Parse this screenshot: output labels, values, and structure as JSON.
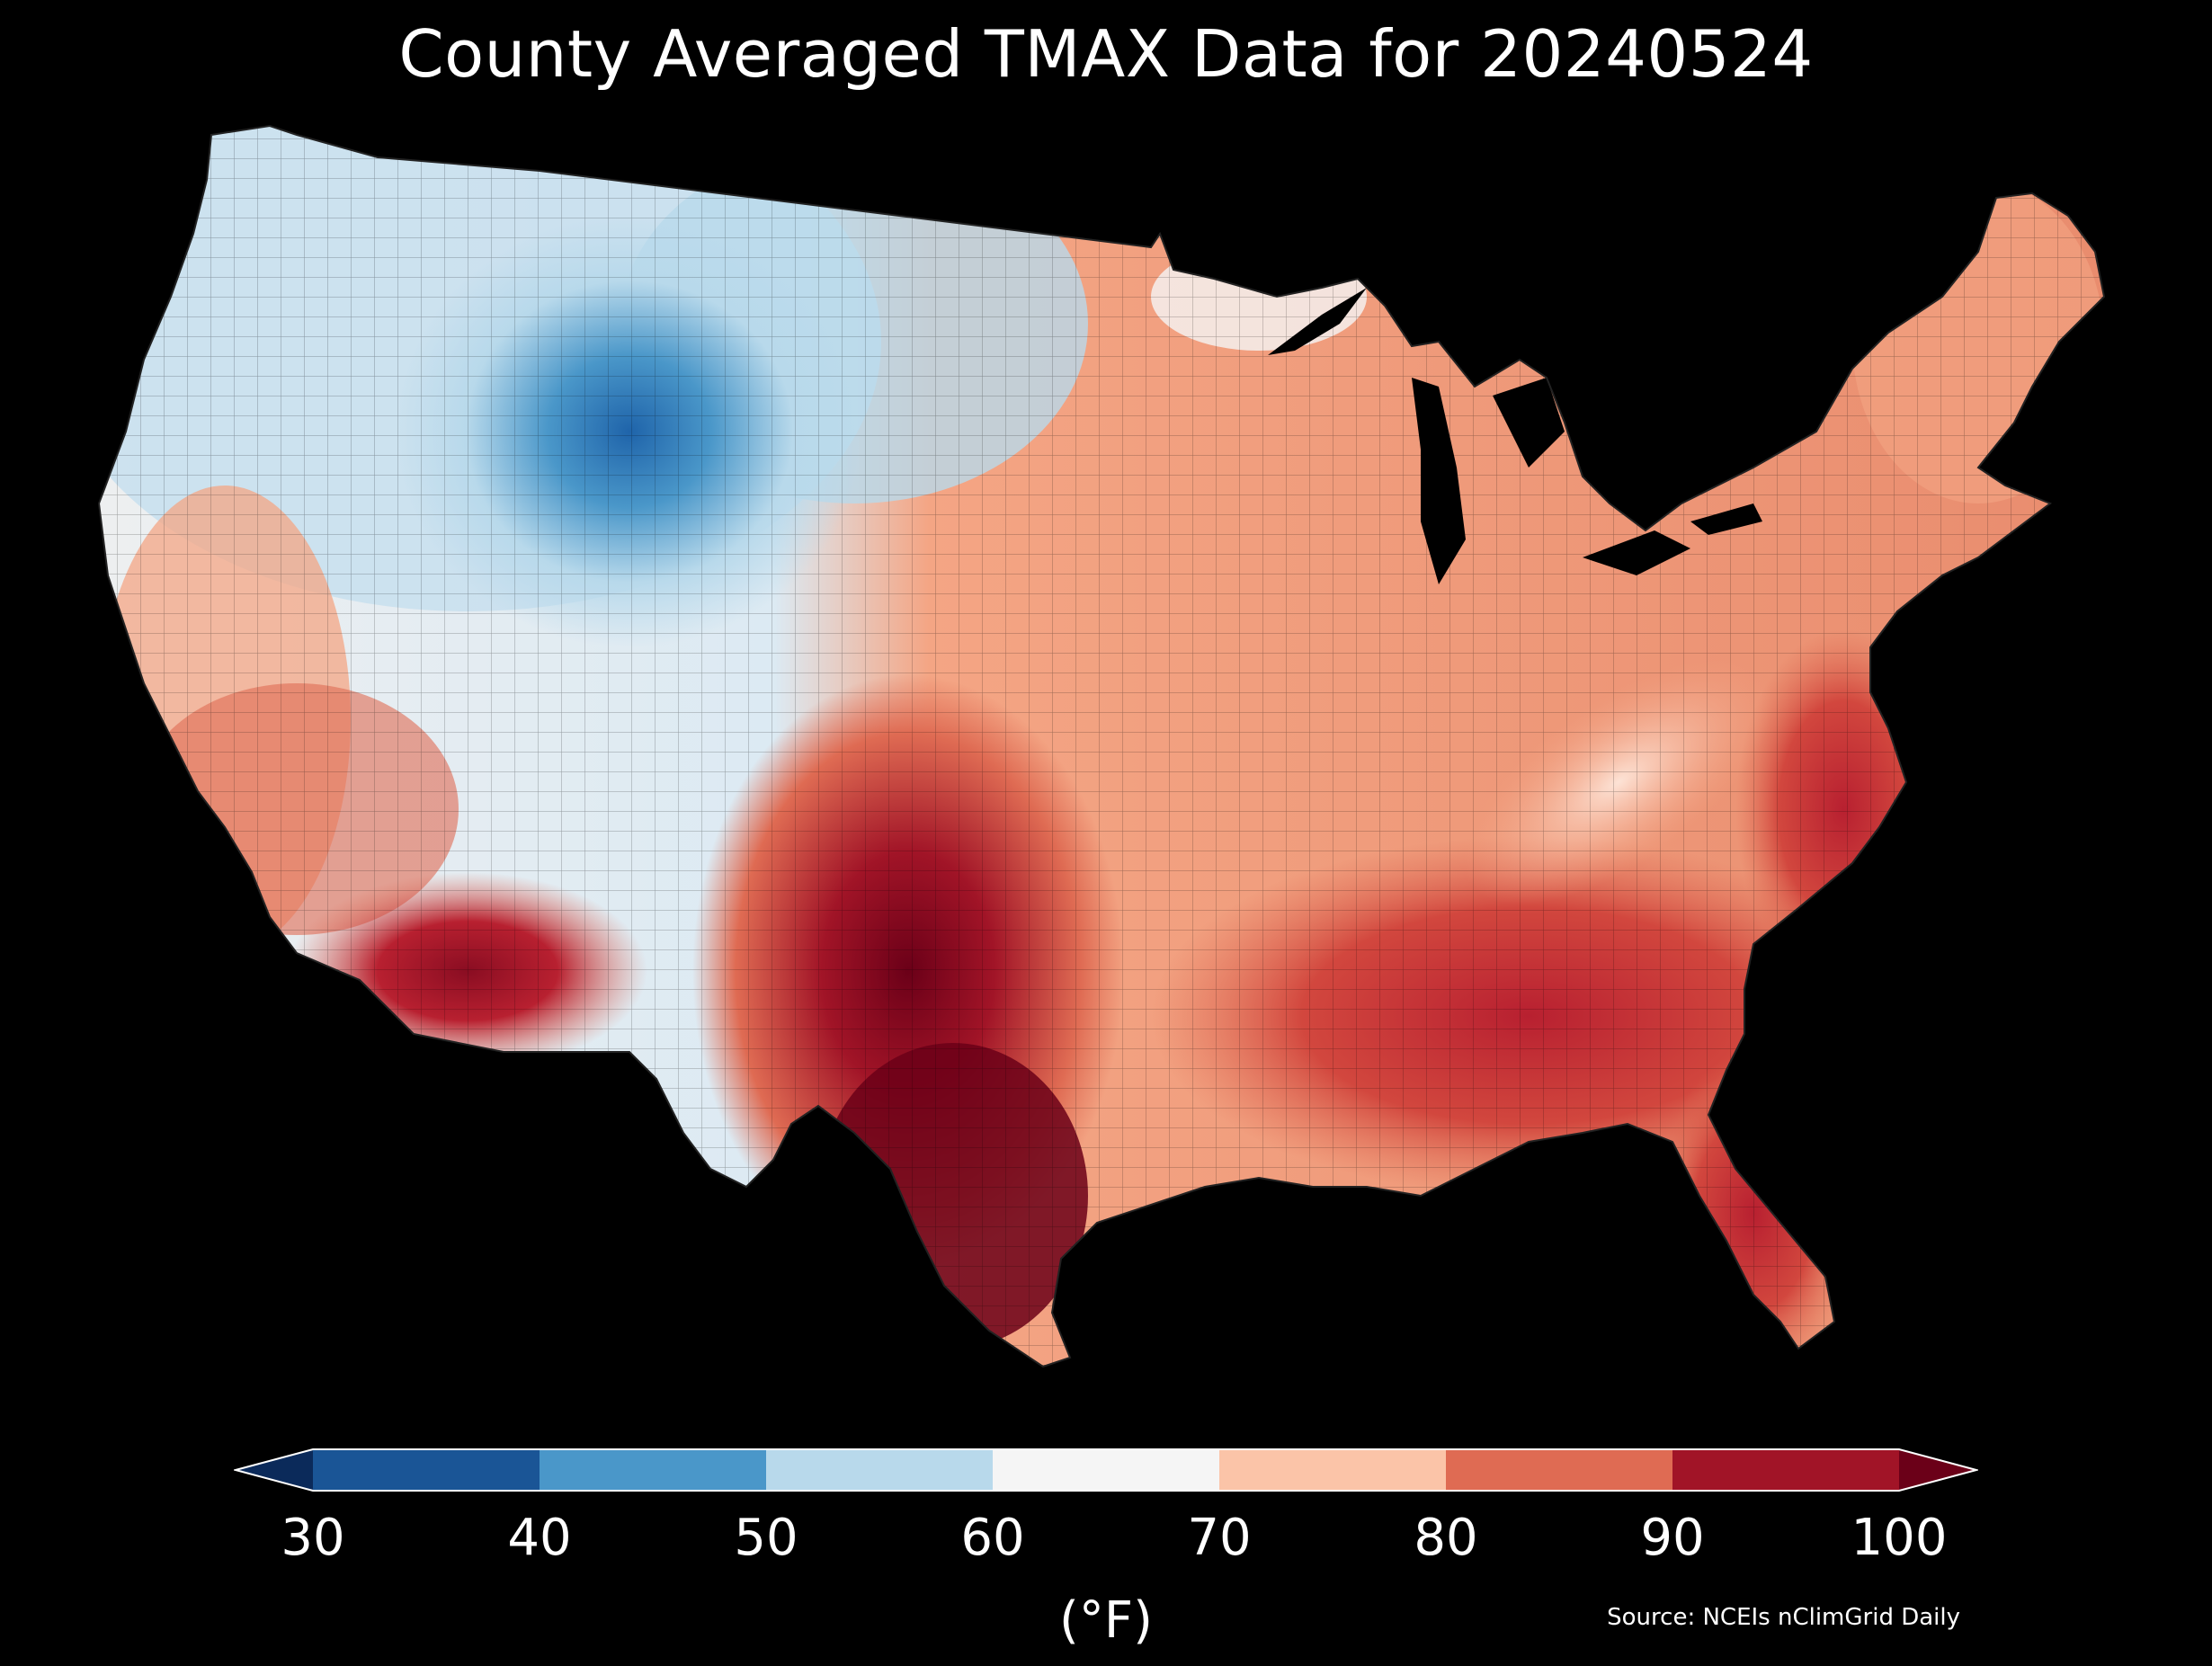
{
  "title": "County Averaged TMAX Data for 20240524",
  "colorbar": {
    "ticks": [
      "30",
      "40",
      "50",
      "60",
      "70",
      "80",
      "90",
      "100"
    ],
    "unit": "(°F)",
    "bins": [
      {
        "from": 30,
        "to": 40,
        "color": "#1a5596"
      },
      {
        "from": 40,
        "to": 50,
        "color": "#4a97c9"
      },
      {
        "from": 50,
        "to": 60,
        "color": "#b8d9eb"
      },
      {
        "from": 60,
        "to": 70,
        "color": "#f5f5f5"
      },
      {
        "from": 70,
        "to": 80,
        "color": "#fbc4a8"
      },
      {
        "from": 80,
        "to": 90,
        "color": "#df6b53"
      },
      {
        "from": 90,
        "to": 100,
        "color": "#a11427"
      }
    ],
    "under_color": "#0b2a5a",
    "over_color": "#6b0018"
  },
  "source": "Source: NCEIs nClimGrid Daily"
}
